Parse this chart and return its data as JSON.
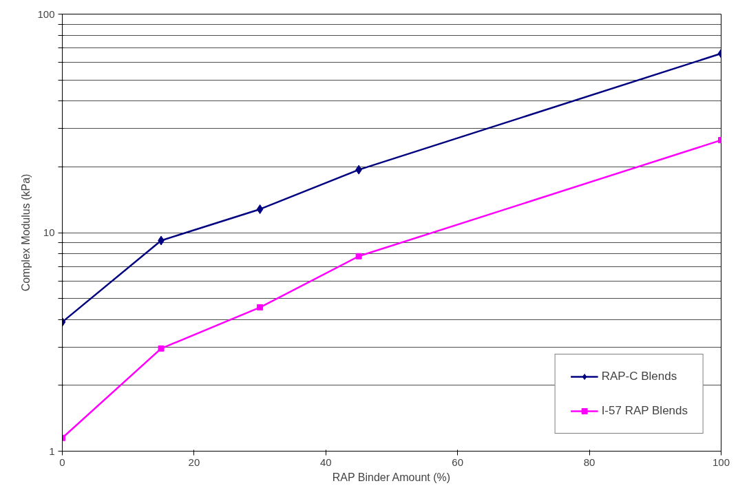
{
  "chart_data": {
    "type": "line",
    "xlabel": "RAP Binder Amount (%)",
    "ylabel": "Complex Modulus (kPa)",
    "x": [
      0,
      15,
      30,
      45,
      100
    ],
    "series": [
      {
        "name": "RAP-C Blends",
        "color": "#000080",
        "marker": "diamond",
        "values": [
          3.9,
          9.2,
          12.8,
          19.4,
          66
        ]
      },
      {
        "name": "I-57 RAP Blends",
        "color": "#ff00ff",
        "marker": "square",
        "values": [
          1.15,
          2.95,
          4.55,
          7.8,
          26.5
        ]
      }
    ],
    "xlim": [
      0,
      100
    ],
    "xticks": [
      0,
      20,
      40,
      60,
      80,
      100
    ],
    "ylim": [
      1,
      100
    ],
    "yticks": [
      1,
      {
        "value": 2,
        "label": null
      },
      {
        "value": 3,
        "label": null
      },
      {
        "value": 4,
        "label": null
      },
      {
        "value": 5,
        "label": null
      },
      {
        "value": 6,
        "label": null
      },
      {
        "value": 7,
        "label": null
      },
      {
        "value": 8,
        "label": null
      },
      {
        "value": 9,
        "label": null
      },
      10,
      {
        "value": 20,
        "label": null
      },
      {
        "value": 30,
        "label": null
      },
      {
        "value": 40,
        "label": null
      },
      {
        "value": 50,
        "label": null
      },
      {
        "value": 60,
        "label": null
      },
      {
        "value": 70,
        "label": null
      },
      {
        "value": 80,
        "label": null
      },
      {
        "value": 90,
        "label": null
      },
      100
    ],
    "log": "y",
    "grid": "y",
    "legend": "bottom right",
    "line_style": "solid"
  }
}
